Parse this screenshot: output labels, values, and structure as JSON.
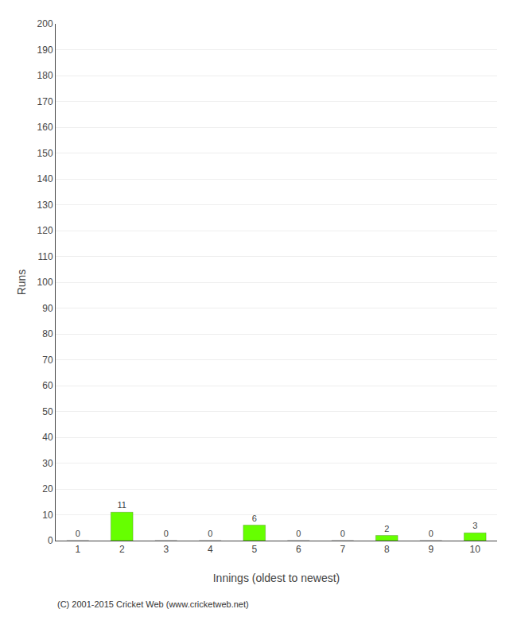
{
  "chart_data": {
    "type": "bar",
    "categories": [
      1,
      2,
      3,
      4,
      5,
      6,
      7,
      8,
      9,
      10
    ],
    "values": [
      0,
      11,
      0,
      0,
      6,
      0,
      0,
      2,
      0,
      3
    ],
    "color": "#66ff00",
    "xlabel": "Innings (oldest to newest)",
    "ylabel": "Runs",
    "ylim": [
      0,
      200
    ],
    "yticks": [
      0,
      10,
      20,
      30,
      40,
      50,
      60,
      70,
      80,
      90,
      100,
      110,
      120,
      130,
      140,
      150,
      160,
      170,
      180,
      190,
      200
    ],
    "grid": true,
    "data_labels": true,
    "annotations": [
      "(C) 2001-2015 Cricket Web (www.cricketweb.net)"
    ]
  }
}
